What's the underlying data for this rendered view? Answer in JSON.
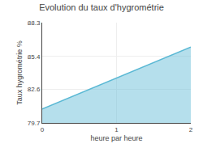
{
  "chart_data": {
    "type": "area",
    "title": "Evolution du taux d'hygrométrie",
    "xlabel": "heure par heure",
    "ylabel": "Taux hygrométrie %",
    "x": [
      0,
      2
    ],
    "values": [
      80.9,
      86.2
    ],
    "color": "#5ab8d4",
    "xlim": [
      0,
      2
    ],
    "xticks": [
      0,
      1,
      2
    ],
    "ylim": [
      79.7,
      88.3
    ],
    "yticks": [
      79.7,
      82.6,
      85.4,
      88.3
    ],
    "grid": true
  }
}
